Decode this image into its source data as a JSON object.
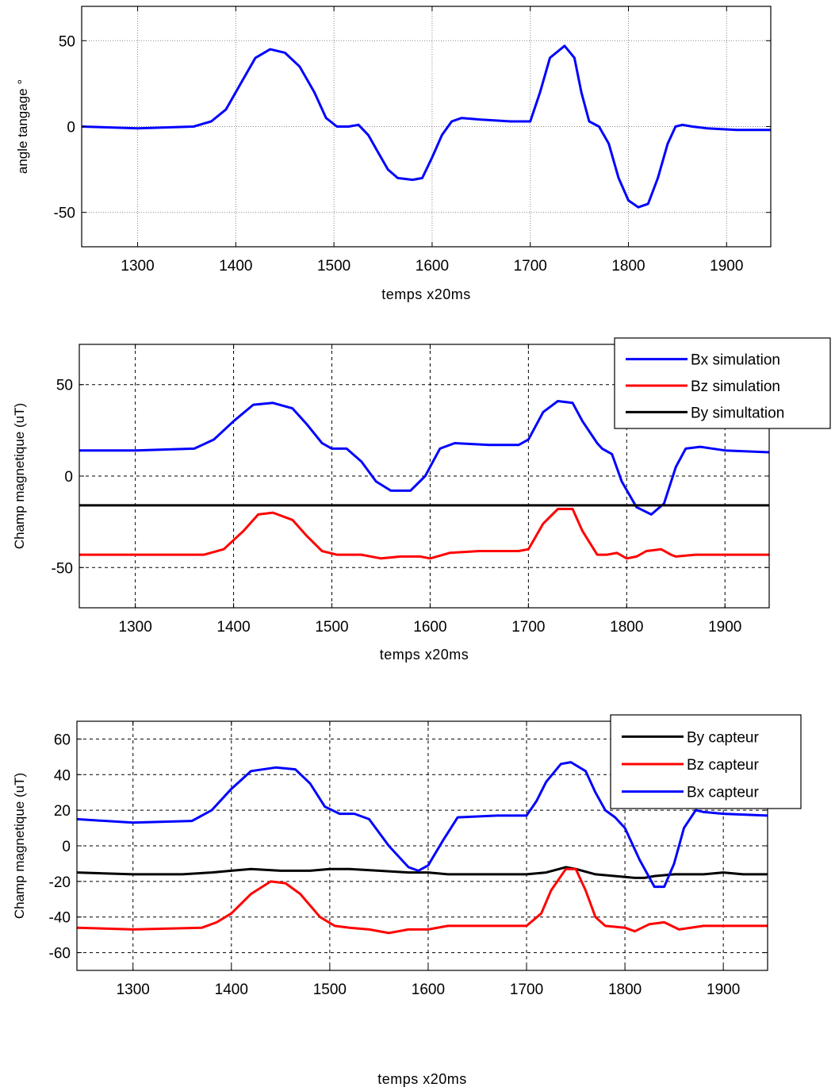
{
  "chart_data": [
    {
      "type": "line",
      "xlabel": "temps x20ms",
      "ylabel": "angle tangage °",
      "xlim": [
        1243,
        1945
      ],
      "ylim": [
        -70,
        70
      ],
      "xticks": [
        1300,
        1400,
        1500,
        1600,
        1700,
        1800,
        1900
      ],
      "yticks": [
        -50,
        0,
        50
      ],
      "grid": "dotted",
      "legend": null,
      "series": [
        {
          "color": "#0000ff",
          "x": [
            1243,
            1300,
            1357,
            1375,
            1390,
            1405,
            1420,
            1435,
            1450,
            1465,
            1480,
            1492,
            1503,
            1515,
            1525,
            1535,
            1545,
            1555,
            1565,
            1580,
            1590,
            1600,
            1610,
            1620,
            1630,
            1650,
            1680,
            1700,
            1710,
            1720,
            1735,
            1745,
            1752,
            1760,
            1770,
            1780,
            1790,
            1800,
            1810,
            1820,
            1830,
            1840,
            1848,
            1855,
            1865,
            1880,
            1910,
            1945
          ],
          "y": [
            0,
            -1,
            0,
            3,
            10,
            25,
            40,
            45,
            43,
            35,
            20,
            5,
            0,
            0,
            1,
            -5,
            -15,
            -25,
            -30,
            -31,
            -30,
            -18,
            -5,
            3,
            5,
            4,
            3,
            3,
            20,
            40,
            47,
            40,
            20,
            3,
            0,
            -10,
            -30,
            -43,
            -47,
            -45,
            -30,
            -10,
            0,
            1,
            0,
            -1,
            -2,
            -2
          ]
        }
      ]
    },
    {
      "type": "line",
      "xlabel": "temps x20ms",
      "ylabel": "Champ magnetique (uT)",
      "xlim": [
        1243,
        1945
      ],
      "ylim": [
        -72,
        72
      ],
      "xticks": [
        1300,
        1400,
        1500,
        1600,
        1700,
        1800,
        1900
      ],
      "yticks": [
        -50,
        0,
        50
      ],
      "grid": "dashed",
      "legend": "top-right",
      "series": [
        {
          "name": "Bx simulation",
          "color": "#0000ff",
          "x": [
            1243,
            1300,
            1360,
            1380,
            1400,
            1420,
            1440,
            1460,
            1475,
            1490,
            1500,
            1515,
            1530,
            1545,
            1560,
            1580,
            1595,
            1610,
            1625,
            1660,
            1690,
            1700,
            1715,
            1730,
            1745,
            1755,
            1770,
            1775,
            1785,
            1795,
            1810,
            1825,
            1838,
            1850,
            1860,
            1875,
            1900,
            1945
          ],
          "y": [
            14,
            14,
            15,
            20,
            30,
            39,
            40,
            37,
            28,
            18,
            15,
            15,
            8,
            -3,
            -8,
            -8,
            0,
            15,
            18,
            17,
            17,
            20,
            35,
            41,
            40,
            30,
            18,
            15,
            12,
            -3,
            -17,
            -21,
            -15,
            5,
            15,
            16,
            14,
            13
          ]
        },
        {
          "name": "Bz simulation",
          "color": "#ff0000",
          "x": [
            1243,
            1300,
            1370,
            1390,
            1410,
            1425,
            1440,
            1460,
            1475,
            1490,
            1505,
            1530,
            1550,
            1570,
            1590,
            1600,
            1620,
            1650,
            1690,
            1700,
            1715,
            1730,
            1745,
            1755,
            1770,
            1780,
            1790,
            1800,
            1810,
            1820,
            1835,
            1845,
            1850,
            1870,
            1920,
            1945
          ],
          "y": [
            -43,
            -43,
            -43,
            -40,
            -30,
            -21,
            -20,
            -24,
            -33,
            -41,
            -43,
            -43,
            -45,
            -44,
            -44,
            -45,
            -42,
            -41,
            -41,
            -40,
            -26,
            -18,
            -18,
            -30,
            -43,
            -43,
            -42,
            -45,
            -44,
            -41,
            -40,
            -43,
            -44,
            -43,
            -43,
            -43
          ]
        },
        {
          "name": "By simultation",
          "color": "#000000",
          "x": [
            1243,
            1945
          ],
          "y": [
            -16,
            -16
          ]
        }
      ]
    },
    {
      "type": "line",
      "xlabel": "temps x20ms",
      "ylabel": "Champ magnetique (uT)",
      "xlim": [
        1243,
        1945
      ],
      "ylim": [
        -70,
        70
      ],
      "xticks": [
        1300,
        1400,
        1500,
        1600,
        1700,
        1800,
        1900
      ],
      "yticks": [
        -60,
        -40,
        -20,
        0,
        20,
        40,
        60
      ],
      "grid": "dashed",
      "legend": "top-right",
      "series": [
        {
          "name": "By capteur",
          "color": "#000000",
          "x": [
            1243,
            1300,
            1350,
            1380,
            1400,
            1420,
            1450,
            1480,
            1500,
            1520,
            1550,
            1580,
            1600,
            1620,
            1650,
            1680,
            1700,
            1720,
            1740,
            1750,
            1770,
            1790,
            1810,
            1820,
            1830,
            1850,
            1880,
            1900,
            1920,
            1945
          ],
          "y": [
            -15,
            -16,
            -16,
            -15,
            -14,
            -13,
            -14,
            -14,
            -13,
            -13,
            -14,
            -15,
            -15,
            -16,
            -16,
            -16,
            -16,
            -15,
            -12,
            -13,
            -16,
            -17,
            -18,
            -18,
            -17,
            -16,
            -16,
            -15,
            -16,
            -16
          ]
        },
        {
          "name": "Bz capteur",
          "color": "#ff0000",
          "x": [
            1243,
            1300,
            1370,
            1385,
            1400,
            1420,
            1440,
            1455,
            1470,
            1490,
            1505,
            1520,
            1540,
            1560,
            1580,
            1600,
            1620,
            1650,
            1700,
            1715,
            1725,
            1740,
            1750,
            1760,
            1770,
            1780,
            1800,
            1810,
            1825,
            1840,
            1855,
            1880,
            1920,
            1945
          ],
          "y": [
            -46,
            -47,
            -46,
            -43,
            -38,
            -27,
            -20,
            -21,
            -27,
            -40,
            -45,
            -46,
            -47,
            -49,
            -47,
            -47,
            -45,
            -45,
            -45,
            -38,
            -25,
            -13,
            -13,
            -25,
            -40,
            -45,
            -46,
            -48,
            -44,
            -43,
            -47,
            -45,
            -45,
            -45
          ]
        },
        {
          "name": "Bx capteur",
          "color": "#0000ff",
          "x": [
            1243,
            1300,
            1360,
            1380,
            1400,
            1420,
            1445,
            1465,
            1480,
            1495,
            1510,
            1525,
            1540,
            1560,
            1580,
            1590,
            1600,
            1615,
            1630,
            1670,
            1700,
            1710,
            1720,
            1735,
            1745,
            1760,
            1770,
            1780,
            1790,
            1800,
            1815,
            1830,
            1840,
            1850,
            1860,
            1872,
            1880,
            1900,
            1945
          ],
          "y": [
            15,
            13,
            14,
            20,
            32,
            42,
            44,
            43,
            35,
            22,
            18,
            18,
            15,
            0,
            -12,
            -14,
            -11,
            3,
            16,
            17,
            17,
            25,
            36,
            46,
            47,
            42,
            30,
            20,
            16,
            10,
            -8,
            -23,
            -23,
            -10,
            10,
            20,
            19,
            18,
            17
          ]
        }
      ]
    }
  ]
}
